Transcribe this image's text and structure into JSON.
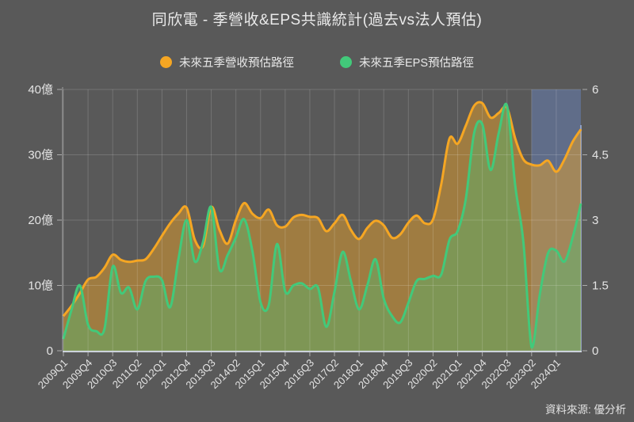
{
  "title": "同欣電 - 季營收&EPS共識統計(過去vs法人預估)",
  "source": "資料來源: 優分析",
  "colors": {
    "background": "#595959",
    "revenue_line": "#f5a623",
    "revenue_fill": "rgba(245,166,35,0.45)",
    "eps_line": "#42c97a",
    "eps_fill": "rgba(66,201,122,0.35)",
    "forecast_region": "rgba(108,138,205,0.42)",
    "forecast_edge": "rgba(170,190,235,0.65)",
    "grid": "rgba(255,255,255,0.16)",
    "axis_line": "#ccd2dc",
    "tick_text": "#e4e4e4"
  },
  "legend": [
    {
      "label": "未來五季營收預估路徑",
      "color": "#f5a623"
    },
    {
      "label": "未來五季EPS預估路徑",
      "color": "#42c97a"
    }
  ],
  "chart_data": {
    "type": "area",
    "title": "同欣電 - 季營收&EPS共識統計(過去vs法人預估)",
    "grid": true,
    "legend_position": "top",
    "categories": [
      "2009Q1",
      "2009Q2",
      "2009Q3",
      "2009Q4",
      "2010Q1",
      "2010Q2",
      "2010Q3",
      "2010Q4",
      "2011Q1",
      "2011Q2",
      "2011Q3",
      "2011Q4",
      "2012Q1",
      "2012Q2",
      "2012Q3",
      "2012Q4",
      "2013Q1",
      "2013Q2",
      "2013Q3",
      "2013Q4",
      "2014Q1",
      "2014Q2",
      "2014Q3",
      "2014Q4",
      "2015Q1",
      "2015Q2",
      "2015Q3",
      "2015Q4",
      "2016Q1",
      "2016Q2",
      "2016Q3",
      "2016Q4",
      "2017Q1",
      "2017Q2",
      "2017Q3",
      "2017Q4",
      "2018Q1",
      "2018Q2",
      "2018Q3",
      "2018Q4",
      "2019Q1",
      "2019Q2",
      "2019Q3",
      "2019Q4",
      "2020Q1",
      "2020Q2",
      "2020Q3",
      "2020Q4",
      "2021Q1",
      "2021Q2",
      "2021Q3",
      "2021Q4",
      "2022Q1",
      "2022Q2",
      "2022Q3",
      "2022Q4",
      "2023Q1",
      "2023Q2",
      "2023Q3",
      "2023Q4",
      "2024Q1",
      "2024Q2",
      "2024Q3",
      "2024Q4"
    ],
    "x_tick_labels": [
      "2009Q1",
      "2009Q4",
      "2010Q3",
      "2011Q2",
      "2012Q1",
      "2012Q4",
      "2013Q3",
      "2014Q2",
      "2015Q1",
      "2015Q4",
      "2016Q3",
      "2017Q2",
      "2018Q1",
      "2018Q4",
      "2019Q3",
      "2020Q2",
      "2021Q1",
      "2021Q4",
      "2022Q3",
      "2023Q2",
      "2024Q1"
    ],
    "x_tick_step": 3,
    "series": [
      {
        "name": "未來五季營收預估路徑",
        "axis": "left",
        "unit": "億",
        "values": [
          5.3,
          6.9,
          8.8,
          10.9,
          11.3,
          12.7,
          14.7,
          13.9,
          13.6,
          13.8,
          14.0,
          15.6,
          17.6,
          19.5,
          21.0,
          21.9,
          17.0,
          16.0,
          22.0,
          18.5,
          16.4,
          20.0,
          22.6,
          21.0,
          20.3,
          21.6,
          19.2,
          19.0,
          20.4,
          20.8,
          20.5,
          20.3,
          18.3,
          19.5,
          20.8,
          18.5,
          17.1,
          18.8,
          19.9,
          19.2,
          17.3,
          17.8,
          19.6,
          20.7,
          19.5,
          20.1,
          25.5,
          32.5,
          31.7,
          34.5,
          37.5,
          37.9,
          35.7,
          36.4,
          37.2,
          32.5,
          29.3,
          28.5,
          28.4,
          29.1,
          27.4,
          29.3,
          32.0,
          33.9
        ]
      },
      {
        "name": "未來五季EPS預估路徑",
        "axis": "right",
        "unit": "",
        "values": [
          0.27,
          0.95,
          1.5,
          0.6,
          0.45,
          0.5,
          1.93,
          1.33,
          1.45,
          0.95,
          1.6,
          1.7,
          1.62,
          1.0,
          2.1,
          3.0,
          2.05,
          2.5,
          3.3,
          1.87,
          2.2,
          2.6,
          3.02,
          2.3,
          1.11,
          1.05,
          2.45,
          1.36,
          1.5,
          1.55,
          1.42,
          1.45,
          0.55,
          1.35,
          2.27,
          1.6,
          0.95,
          1.5,
          2.1,
          1.2,
          0.8,
          0.65,
          1.1,
          1.6,
          1.65,
          1.72,
          1.75,
          2.55,
          2.75,
          3.5,
          5.0,
          5.2,
          4.15,
          5.0,
          5.63,
          3.8,
          2.5,
          0.08,
          1.3,
          2.24,
          2.3,
          2.05,
          2.6,
          3.38
        ]
      }
    ],
    "left_axis": {
      "ticks": [
        "0",
        "10億",
        "20億",
        "30億",
        "40億"
      ],
      "min": 0,
      "max": 40
    },
    "right_axis": {
      "ticks": [
        "0",
        "1.5",
        "3",
        "4.5",
        "6"
      ],
      "min": 0,
      "max": 6
    },
    "forecast_region": {
      "start_category": "2023Q2",
      "start_index": 57,
      "end_index": 63
    }
  }
}
